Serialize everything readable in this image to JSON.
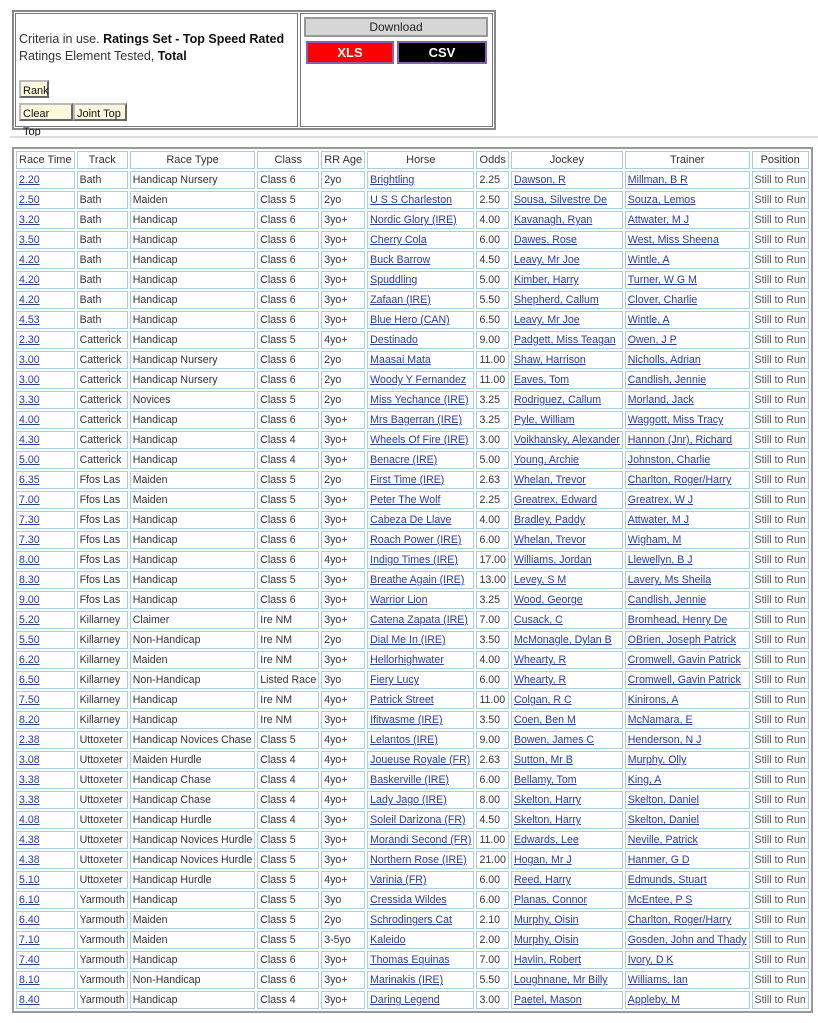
{
  "criteria": {
    "prefix": "Criteria in use. ",
    "ratings_set": "Ratings Set - Top Speed Rated",
    "element_prefix": "Ratings Element Tested, ",
    "element": "Total"
  },
  "buttons": {
    "rank": "Rank",
    "clear_top": "Clear Top",
    "joint_top": "Joint Top"
  },
  "download": {
    "title": "Download",
    "xls": "XLS",
    "csv": "CSV",
    "xls_color": "#ff0000",
    "csv_color": "#000000"
  },
  "table": {
    "headers": [
      "Race Time",
      "Track",
      "Race Type",
      "Class",
      "RR Age",
      "Horse",
      "Odds",
      "Jockey",
      "Trainer",
      "Position"
    ],
    "rows": [
      [
        "2.20",
        "Bath",
        "Handicap Nursery",
        "Class 6",
        "2yo",
        "Brightling",
        "2.25",
        "Dawson, R",
        "Millman, B R",
        "Still to Run"
      ],
      [
        "2.50",
        "Bath",
        "Maiden",
        "Class 5",
        "2yo",
        "U S S Charleston",
        "2.50",
        "Sousa, Silvestre De",
        "Souza, Lemos",
        "Still to Run"
      ],
      [
        "3.20",
        "Bath",
        "Handicap",
        "Class 6",
        "3yo+",
        "Nordic Glory (IRE)",
        "4.00",
        "Kavanagh, Ryan",
        "Attwater, M J",
        "Still to Run"
      ],
      [
        "3.50",
        "Bath",
        "Handicap",
        "Class 6",
        "3yo+",
        "Cherry Cola",
        "6.00",
        "Dawes, Rose",
        "West, Miss Sheena",
        "Still to Run"
      ],
      [
        "4.20",
        "Bath",
        "Handicap",
        "Class 6",
        "3yo+",
        "Buck Barrow",
        "4.50",
        "Leavy, Mr Joe",
        "Wintle, A",
        "Still to Run"
      ],
      [
        "4.20",
        "Bath",
        "Handicap",
        "Class 6",
        "3yo+",
        "Spuddling",
        "5.00",
        "Kimber, Harry",
        "Turner, W G M",
        "Still to Run"
      ],
      [
        "4.20",
        "Bath",
        "Handicap",
        "Class 6",
        "3yo+",
        "Zafaan (IRE)",
        "5.50",
        "Shepherd, Callum",
        "Clover, Charlie",
        "Still to Run"
      ],
      [
        "4.53",
        "Bath",
        "Handicap",
        "Class 6",
        "3yo+",
        "Blue Hero (CAN)",
        "6.50",
        "Leavy, Mr Joe",
        "Wintle, A",
        "Still to Run"
      ],
      [
        "2.30",
        "Catterick",
        "Handicap",
        "Class 5",
        "4yo+",
        "Destinado",
        "9.00",
        "Padgett, Miss Teagan",
        "Owen, J P",
        "Still to Run"
      ],
      [
        "3.00",
        "Catterick",
        "Handicap Nursery",
        "Class 6",
        "2yo",
        "Maasai Mata",
        "11.00",
        "Shaw, Harrison",
        "Nicholls, Adrian",
        "Still to Run"
      ],
      [
        "3.00",
        "Catterick",
        "Handicap Nursery",
        "Class 6",
        "2yo",
        "Woody Y Fernandez",
        "11.00",
        "Eaves, Tom",
        "Candlish, Jennie",
        "Still to Run"
      ],
      [
        "3.30",
        "Catterick",
        "Novices",
        "Class 5",
        "2yo",
        "Miss Yechance (IRE)",
        "3.25",
        "Rodriguez, Callum",
        "Morland, Jack",
        "Still to Run"
      ],
      [
        "4.00",
        "Catterick",
        "Handicap",
        "Class 6",
        "3yo+",
        "Mrs Bagerran (IRE)",
        "3.25",
        "Pyle, William",
        "Waggott, Miss Tracy",
        "Still to Run"
      ],
      [
        "4.30",
        "Catterick",
        "Handicap",
        "Class 4",
        "3yo+",
        "Wheels Of Fire (IRE)",
        "3.00",
        "Voikhansky, Alexander",
        "Hannon (Jnr), Richard",
        "Still to Run"
      ],
      [
        "5.00",
        "Catterick",
        "Handicap",
        "Class 4",
        "3yo+",
        "Benacre (IRE)",
        "5.00",
        "Young, Archie",
        "Johnston, Charlie",
        "Still to Run"
      ],
      [
        "6.35",
        "Ffos Las",
        "Maiden",
        "Class 5",
        "2yo",
        "First Time (IRE)",
        "2.63",
        "Whelan, Trevor",
        "Charlton, Roger/Harry",
        "Still to Run"
      ],
      [
        "7.00",
        "Ffos Las",
        "Maiden",
        "Class 5",
        "3yo+",
        "Peter The Wolf",
        "2.25",
        "Greatrex, Edward",
        "Greatrex, W J",
        "Still to Run"
      ],
      [
        "7.30",
        "Ffos Las",
        "Handicap",
        "Class 6",
        "3yo+",
        "Cabeza De Llave",
        "4.00",
        "Bradley, Paddy",
        "Attwater, M J",
        "Still to Run"
      ],
      [
        "7.30",
        "Ffos Las",
        "Handicap",
        "Class 6",
        "3yo+",
        "Roach Power (IRE)",
        "6.00",
        "Whelan, Trevor",
        "Wigham, M",
        "Still to Run"
      ],
      [
        "8.00",
        "Ffos Las",
        "Handicap",
        "Class 6",
        "4yo+",
        "Indigo Times (IRE)",
        "17.00",
        "Williams, Jordan",
        "Llewellyn, B J",
        "Still to Run"
      ],
      [
        "8.30",
        "Ffos Las",
        "Handicap",
        "Class 5",
        "3yo+",
        "Breathe Again (IRE)",
        "13.00",
        "Levey, S M",
        "Lavery, Ms Sheila",
        "Still to Run"
      ],
      [
        "9.00",
        "Ffos Las",
        "Handicap",
        "Class 6",
        "3yo+",
        "Warrior Lion",
        "3.25",
        "Wood, George",
        "Candlish, Jennie",
        "Still to Run"
      ],
      [
        "5.20",
        "Killarney",
        "Claimer",
        "Ire NM",
        "3yo+",
        "Catena Zapata (IRE)",
        "7.00",
        "Cusack, C",
        "Bromhead, Henry De",
        "Still to Run"
      ],
      [
        "5.50",
        "Killarney",
        "Non-Handicap",
        "Ire NM",
        "2yo",
        "Dial Me In (IRE)",
        "3.50",
        "McMonagle, Dylan B",
        "OBrien, Joseph Patrick",
        "Still to Run"
      ],
      [
        "6.20",
        "Killarney",
        "Maiden",
        "Ire NM",
        "3yo+",
        "Hellorhighwater",
        "4.00",
        "Whearty, R",
        "Cromwell, Gavin Patrick",
        "Still to Run"
      ],
      [
        "6.50",
        "Killarney",
        "Non-Handicap",
        "Listed Race",
        "3yo",
        "Fiery Lucy",
        "6.00",
        "Whearty, R",
        "Cromwell, Gavin Patrick",
        "Still to Run"
      ],
      [
        "7.50",
        "Killarney",
        "Handicap",
        "Ire NM",
        "4yo+",
        "Patrick Street",
        "11.00",
        "Colgan, R C",
        "Kinirons, A",
        "Still to Run"
      ],
      [
        "8.20",
        "Killarney",
        "Handicap",
        "Ire NM",
        "3yo+",
        "Ifitwasme (IRE)",
        "3.50",
        "Coen, Ben M",
        "McNamara, E",
        "Still to Run"
      ],
      [
        "2.38",
        "Uttoxeter",
        "Handicap Novices Chase",
        "Class 5",
        "4yo+",
        "Lelantos (IRE)",
        "9.00",
        "Bowen, James C",
        "Henderson, N J",
        "Still to Run"
      ],
      [
        "3.08",
        "Uttoxeter",
        "Maiden Hurdle",
        "Class 4",
        "4yo+",
        "Joueuse Royale (FR)",
        "2.63",
        "Sutton, Mr B",
        "Murphy, Olly",
        "Still to Run"
      ],
      [
        "3.38",
        "Uttoxeter",
        "Handicap Chase",
        "Class 4",
        "4yo+",
        "Baskerville (IRE)",
        "6.00",
        "Bellamy, Tom",
        "King, A",
        "Still to Run"
      ],
      [
        "3.38",
        "Uttoxeter",
        "Handicap Chase",
        "Class 4",
        "4yo+",
        "Lady Jago (IRE)",
        "8.00",
        "Skelton, Harry",
        "Skelton, Daniel",
        "Still to Run"
      ],
      [
        "4.08",
        "Uttoxeter",
        "Handicap Hurdle",
        "Class 4",
        "3yo+",
        "Soleil Darizona (FR)",
        "4.50",
        "Skelton, Harry",
        "Skelton, Daniel",
        "Still to Run"
      ],
      [
        "4.38",
        "Uttoxeter",
        "Handicap Novices Hurdle",
        "Class 5",
        "3yo+",
        "Morandi Second (FR)",
        "11.00",
        "Edwards, Lee",
        "Neville, Patrick",
        "Still to Run"
      ],
      [
        "4.38",
        "Uttoxeter",
        "Handicap Novices Hurdle",
        "Class 5",
        "3yo+",
        "Northern Rose (IRE)",
        "21.00",
        "Hogan, Mr J",
        "Hanmer, G D",
        "Still to Run"
      ],
      [
        "5.10",
        "Uttoxeter",
        "Handicap Hurdle",
        "Class 5",
        "4yo+",
        "Varinia (FR)",
        "6.00",
        "Reed, Harry",
        "Edmunds, Stuart",
        "Still to Run"
      ],
      [
        "6.10",
        "Yarmouth",
        "Handicap",
        "Class 5",
        "3yo",
        "Cressida Wildes",
        "6.00",
        "Planas, Connor",
        "McEntee, P S",
        "Still to Run"
      ],
      [
        "6.40",
        "Yarmouth",
        "Maiden",
        "Class 5",
        "2yo",
        "Schrodingers Cat",
        "2.10",
        "Murphy, Oisin",
        "Charlton, Roger/Harry",
        "Still to Run"
      ],
      [
        "7.10",
        "Yarmouth",
        "Maiden",
        "Class 5",
        "3-5yo",
        "Kaleido",
        "2.00",
        "Murphy, Oisin",
        "Gosden, John and Thady",
        "Still to Run"
      ],
      [
        "7.40",
        "Yarmouth",
        "Handicap",
        "Class 6",
        "3yo+",
        "Thomas Equinas",
        "7.00",
        "Havlin, Robert",
        "Ivory, D K",
        "Still to Run"
      ],
      [
        "8.10",
        "Yarmouth",
        "Non-Handicap",
        "Class 6",
        "3yo+",
        "Marinakis (IRE)",
        "5.50",
        "Loughnane, Mr Billy",
        "Williams, Ian",
        "Still to Run"
      ],
      [
        "8.40",
        "Yarmouth",
        "Handicap",
        "Class 4",
        "3yo+",
        "Daring Legend",
        "3.00",
        "Paetel, Mason",
        "Appleby, M",
        "Still to Run"
      ]
    ]
  }
}
